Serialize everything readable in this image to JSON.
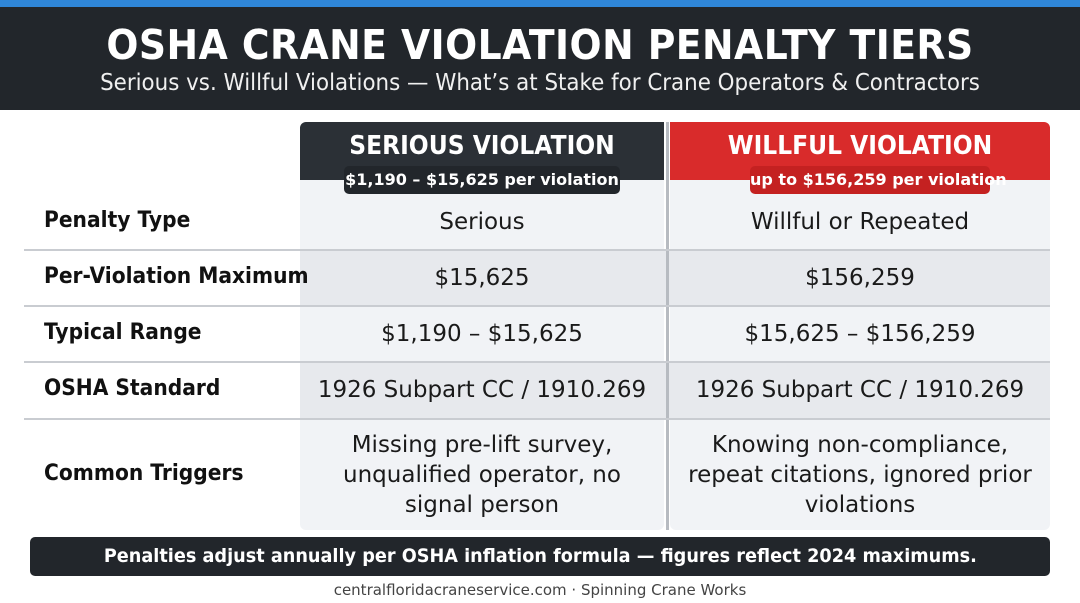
{
  "header": {
    "title": "OSHA CRANE VIOLATION PENALTY TIERS",
    "subtitle": "Serious vs. Willful Violations — What’s at Stake for Crane Operators & Contractors"
  },
  "columns": {
    "serious": {
      "title": "SERIOUS VIOLATION",
      "range": "$1,190 – $15,625 per violation"
    },
    "willful": {
      "title": "WILLFUL VIOLATION",
      "range": "up to $156,259 per violation"
    }
  },
  "rows": [
    {
      "label": "Penalty Type",
      "serious": "Serious",
      "willful": "Willful or Repeated"
    },
    {
      "label": "Per-Violation Maximum",
      "serious": "$15,625",
      "willful": "$156,259"
    },
    {
      "label": "Typical Range",
      "serious": "$1,190 – $15,625",
      "willful": "$15,625 – $156,259"
    },
    {
      "label": "OSHA Standard",
      "serious": "1926 Subpart CC / 1910.269",
      "willful": "1926 Subpart CC / 1910.269"
    },
    {
      "label": "Common Triggers",
      "serious": "Missing pre-lift survey, unqualified operator, no signal person",
      "willful": "Knowing non-compliance, repeat citations, ignored prior violations"
    }
  ],
  "footer": {
    "note": "Penalties adjust annually per OSHA inflation formula — figures reflect 2024 maximums.",
    "credit": "centralfloridacraneservice.com · Spinning Crane Works"
  },
  "colors": {
    "accent_blue": "#2f86d8",
    "header_dark": "#22262b",
    "serious_header": "#2b3036",
    "willful_header": "#d92b2b"
  }
}
